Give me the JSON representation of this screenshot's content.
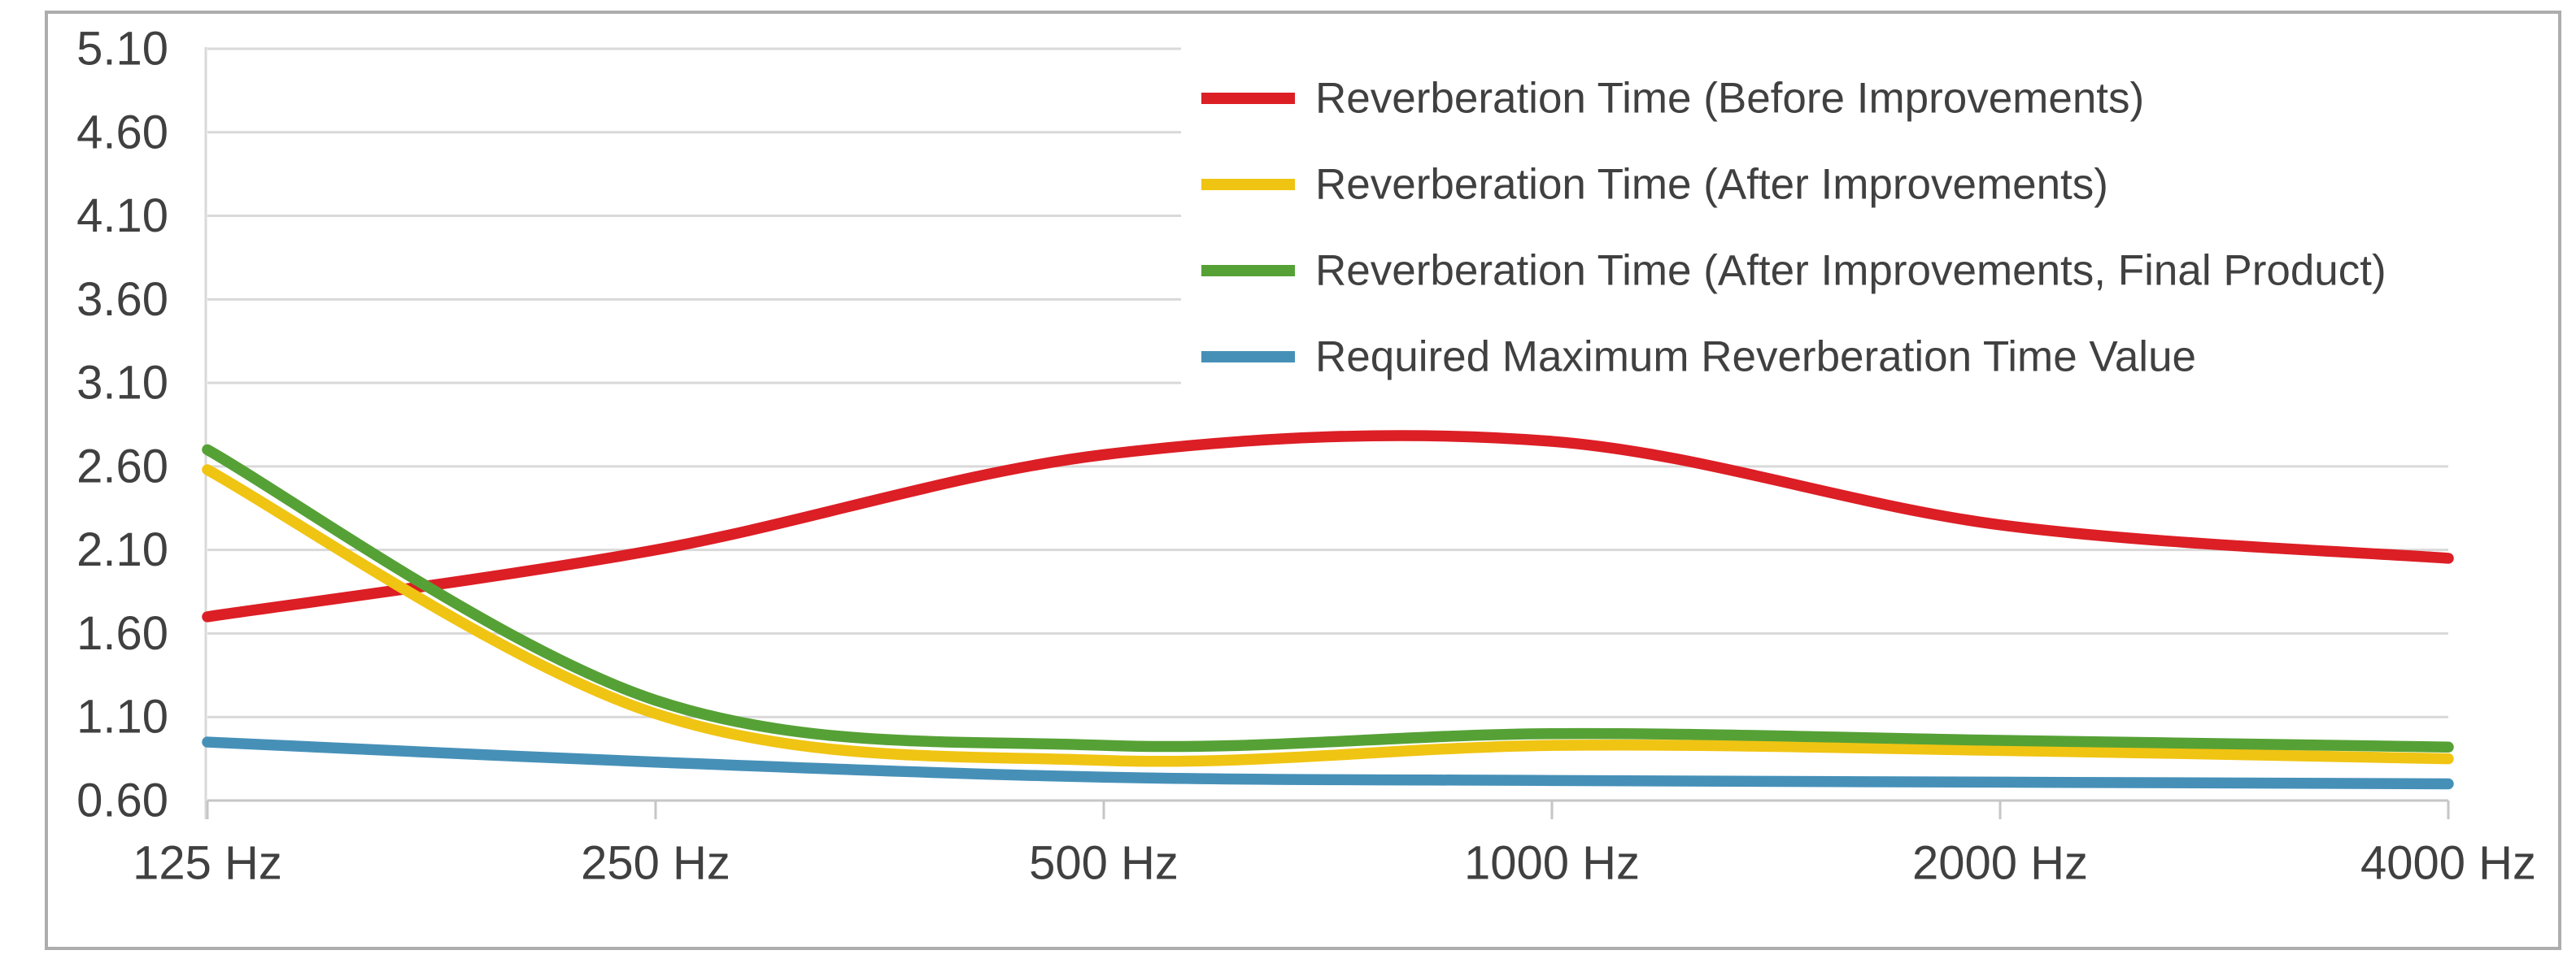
{
  "chart_data": {
    "type": "line",
    "title": "",
    "xlabel": "",
    "ylabel": "",
    "categories": [
      "125 Hz",
      "250 Hz",
      "500 Hz",
      "1000 Hz",
      "2000 Hz",
      "4000 Hz"
    ],
    "series": [
      {
        "name": "Reverberation Time (Before Improvements)",
        "color": "#dc1e25",
        "values": [
          1.7,
          2.1,
          2.67,
          2.75,
          2.25,
          2.05
        ]
      },
      {
        "name": "Reverberation Time (After Improvements)",
        "color": "#f0c413",
        "values": [
          2.58,
          1.12,
          0.84,
          0.93,
          0.9,
          0.85
        ]
      },
      {
        "name": "Reverberation Time (After Improvements, Final Product)",
        "color": "#56a136",
        "values": [
          2.7,
          1.2,
          0.93,
          1.0,
          0.96,
          0.92
        ]
      },
      {
        "name": "Required Maximum Reverberation Time Value",
        "color": "#4690b8",
        "values": [
          0.95,
          0.83,
          0.74,
          0.72,
          0.71,
          0.7
        ]
      }
    ],
    "y_axis": {
      "min": 0.6,
      "max": 5.1,
      "step": 0.5,
      "tick_labels": [
        "5.10",
        "4.60",
        "4.10",
        "3.60",
        "3.10",
        "2.60",
        "2.10",
        "1.60",
        "1.10",
        "0.60"
      ]
    },
    "x_axis": {
      "tick_labels": [
        "125 Hz",
        "250 Hz",
        "500 Hz",
        "1000 Hz",
        "2000 Hz",
        "4000 Hz"
      ]
    },
    "grid": true,
    "smoothed_lines": true,
    "legend_position": "top-right",
    "colors": {
      "gridline": "#d9d9d9",
      "axis_line": "#c6c6c6",
      "tick": "#c6c6c6",
      "label_text": "#404040",
      "frame_border": "#adadad",
      "background": "#ffffff",
      "legend_background": "#ffffff"
    }
  }
}
